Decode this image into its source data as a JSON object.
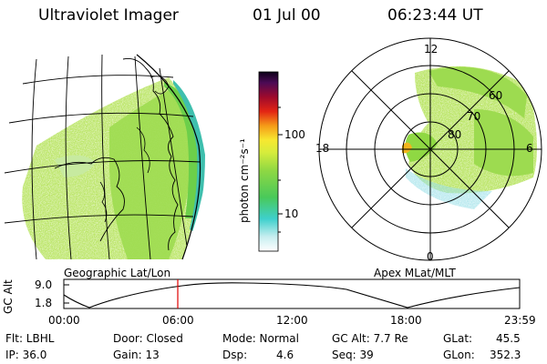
{
  "header": {
    "instrument": "Ultraviolet Imager",
    "date": "01 Jul 00",
    "time": "06:23:44 UT"
  },
  "colorbar": {
    "unit_label": "photon cm⁻²s⁻¹",
    "ticks": [
      "100",
      "10"
    ]
  },
  "panels": {
    "left_label": "Geographic Lat/Lon",
    "right_label": "Apex MLat/MLT"
  },
  "polar": {
    "mlt_labels": {
      "top": "12",
      "left": "18",
      "right": "6",
      "bottom": "0"
    },
    "lat_labels": [
      "60",
      "70",
      "80"
    ]
  },
  "timeline": {
    "ylabel": "GC Alt",
    "y_ticks": [
      "9.0",
      "1.8"
    ],
    "x_ticks": [
      "00:00",
      "06:00",
      "12:00",
      "18:00",
      "23:59"
    ]
  },
  "status": {
    "flt": "Flt: LBHL",
    "ip": "IP: 36.0",
    "door": "Door: Closed",
    "gain": "Gain: 13",
    "mode": "Mode: Normal",
    "dsp_label": "Dsp:",
    "dsp_value": "4.6",
    "gc_alt": "GC Alt: 7.7 Re",
    "seq": "Seq: 39",
    "glat_label": "GLat:",
    "glat_value": "45.5",
    "glon_label": "GLon:",
    "glon_value": "352.3"
  },
  "colors": {
    "aurora_main": "#b5e35a",
    "aurora_bright": "#6ccf4a",
    "aurora_edge": "#3fbfae",
    "marker": "#e00000"
  }
}
